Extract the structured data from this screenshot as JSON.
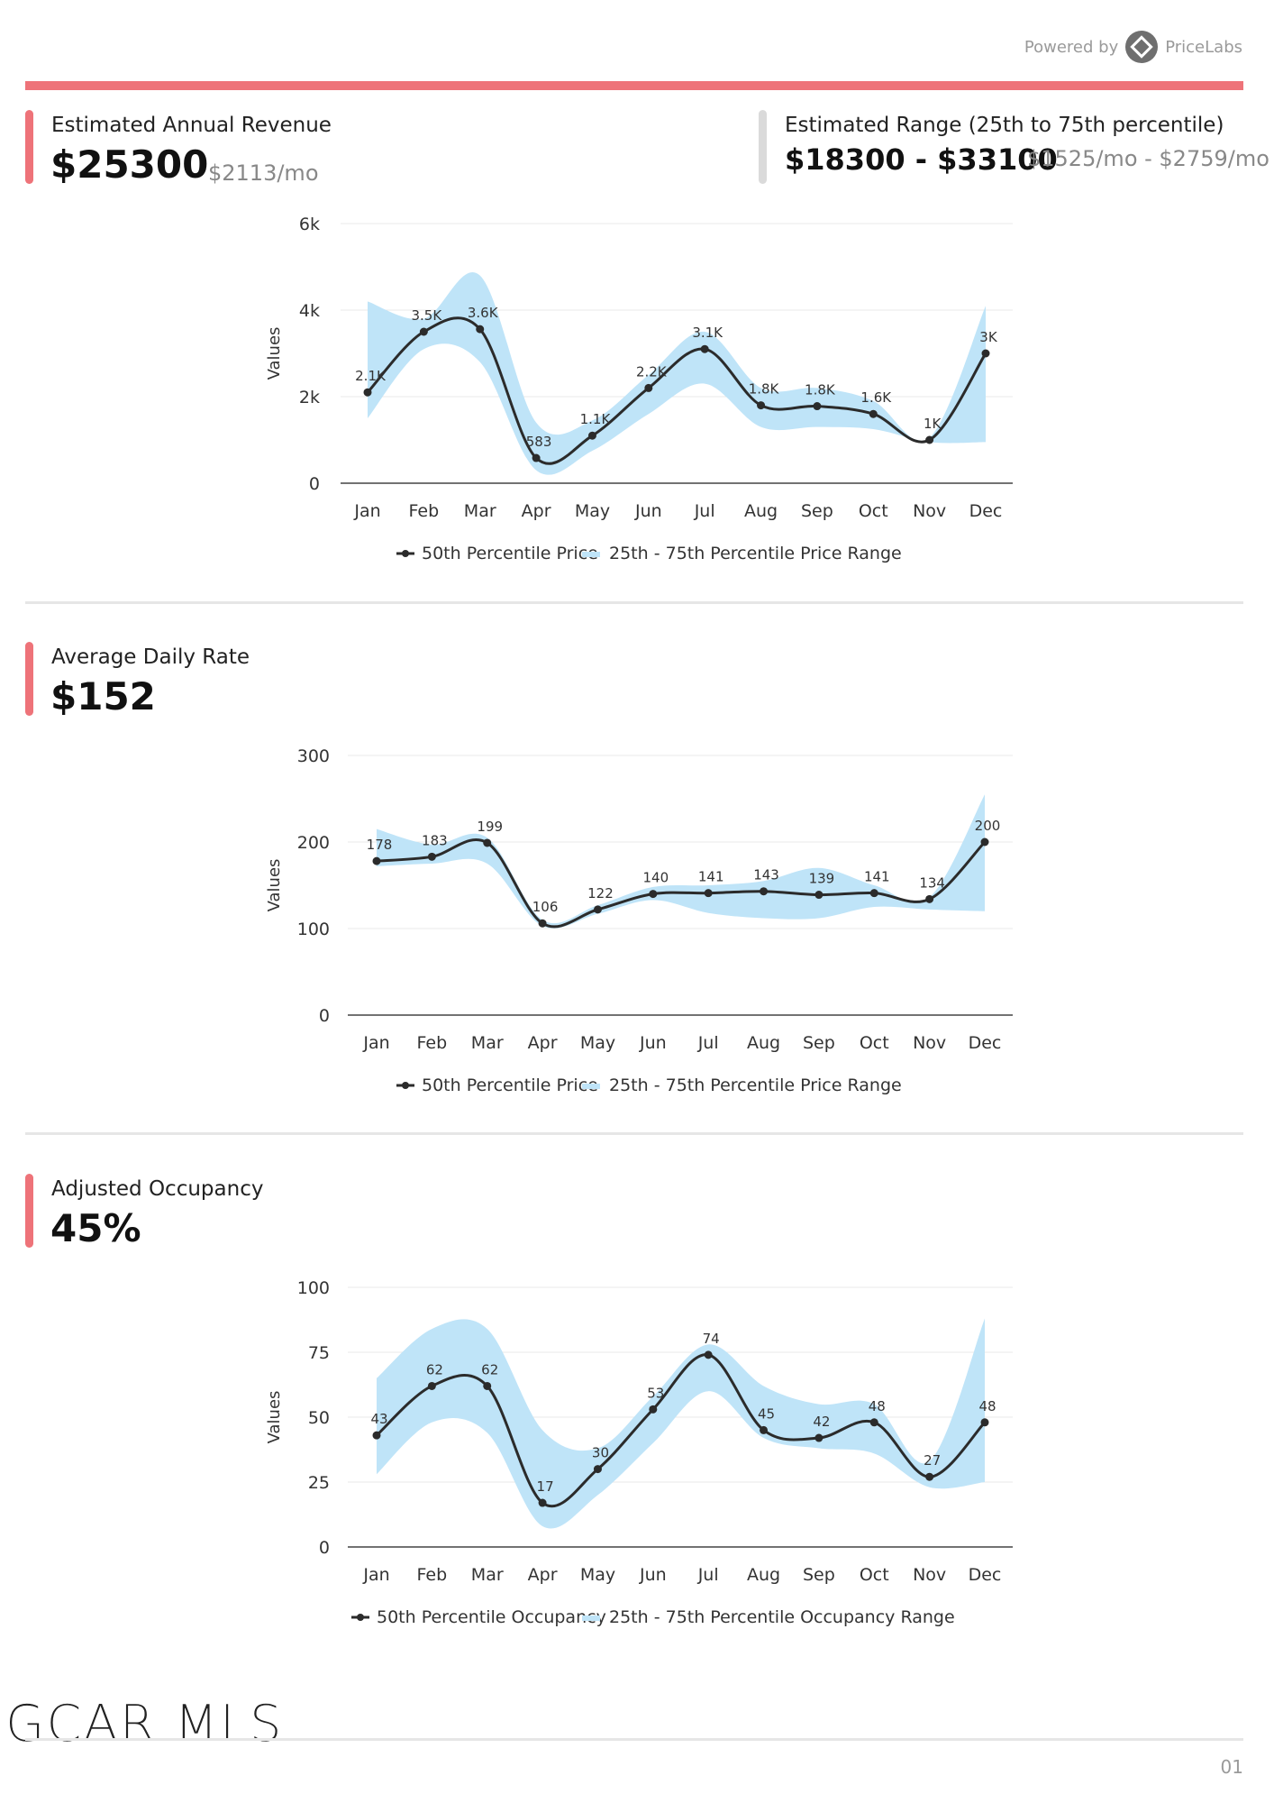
{
  "header": {
    "powered_by": "Powered by",
    "brand": "PriceLabs"
  },
  "revenue": {
    "label": "Estimated Annual Revenue",
    "value": "$25300",
    "monthly": "$2113/mo",
    "range_label": "Estimated Range (25th to 75th percentile)",
    "range_value": "$18300 - $33100",
    "range_monthly": "$1525/mo - $2759/mo"
  },
  "adr": {
    "label": "Average Daily Rate",
    "value": "$152"
  },
  "occupancy": {
    "label": "Adjusted Occupancy",
    "value": "45%"
  },
  "footer": {
    "logo": "GCAR MLS",
    "page": "01"
  },
  "colors": {
    "accent": "#ee7379",
    "band": "#bfe4f8",
    "line": "#2b2b2b"
  },
  "chart_data": [
    {
      "type": "line",
      "categories": [
        "Jan",
        "Feb",
        "Mar",
        "Apr",
        "May",
        "Jun",
        "Jul",
        "Aug",
        "Sep",
        "Oct",
        "Nov",
        "Dec"
      ],
      "ylabel": "Values",
      "ylim": [
        0,
        6000
      ],
      "yticks": [
        0,
        2000,
        4000,
        6000
      ],
      "ytick_labels": [
        "0",
        "2k",
        "4k",
        "6k"
      ],
      "series": [
        {
          "name": "50th Percentile Price",
          "values": [
            2100,
            3500,
            3560,
            583,
            1100,
            2200,
            3100,
            1800,
            1780,
            1600,
            1000,
            3000
          ],
          "labels": [
            "2.1K",
            "3.5K",
            "3.6K",
            "583",
            "1.1K",
            "2.2K",
            "3.1K",
            "1.8K",
            "1.8K",
            "1.6K",
            "1K",
            "3K"
          ]
        },
        {
          "name": "25th - 75th Percentile Price Range",
          "kind": "band",
          "lower": [
            1500,
            3100,
            2800,
            300,
            750,
            1600,
            2300,
            1300,
            1300,
            1250,
            950,
            950
          ],
          "upper": [
            4200,
            3800,
            4800,
            1400,
            1450,
            2500,
            3500,
            2200,
            2200,
            1900,
            1050,
            4100
          ]
        }
      ],
      "legend": [
        "50th Percentile Price",
        "25th - 75th Percentile Price Range"
      ],
      "legend_position": "bottom",
      "grid": true
    },
    {
      "type": "line",
      "categories": [
        "Jan",
        "Feb",
        "Mar",
        "Apr",
        "May",
        "Jun",
        "Jul",
        "Aug",
        "Sep",
        "Oct",
        "Nov",
        "Dec"
      ],
      "ylabel": "Values",
      "ylim": [
        0,
        300
      ],
      "yticks": [
        0,
        100,
        200,
        300
      ],
      "ytick_labels": [
        "0",
        "100",
        "200",
        "300"
      ],
      "series": [
        {
          "name": "50th Percentile Price",
          "values": [
            178,
            183,
            199,
            106,
            122,
            140,
            141,
            143,
            139,
            141,
            134,
            200
          ],
          "labels": [
            "178",
            "183",
            "199",
            "106",
            "122",
            "140",
            "141",
            "143",
            "139",
            "141",
            "134",
            "200"
          ]
        },
        {
          "name": "25th - 75th Percentile Price Range",
          "kind": "band",
          "lower": [
            172,
            175,
            175,
            103,
            117,
            133,
            118,
            112,
            112,
            125,
            122,
            120
          ],
          "upper": [
            215,
            197,
            205,
            110,
            127,
            148,
            150,
            155,
            170,
            150,
            136,
            255
          ]
        }
      ],
      "legend": [
        "50th Percentile Price",
        "25th - 75th Percentile Price Range"
      ],
      "legend_position": "bottom",
      "grid": true
    },
    {
      "type": "line",
      "categories": [
        "Jan",
        "Feb",
        "Mar",
        "Apr",
        "May",
        "Jun",
        "Jul",
        "Aug",
        "Sep",
        "Oct",
        "Nov",
        "Dec"
      ],
      "ylabel": "Values",
      "ylim": [
        0,
        100
      ],
      "yticks": [
        0,
        25,
        50,
        75,
        100
      ],
      "ytick_labels": [
        "0",
        "25",
        "50",
        "75",
        "100"
      ],
      "series": [
        {
          "name": "50th Percentile Occupancy",
          "values": [
            43,
            62,
            62,
            17,
            30,
            53,
            74,
            45,
            42,
            48,
            27,
            48
          ],
          "labels": [
            "43",
            "62",
            "62",
            "17",
            "30",
            "53",
            "74",
            "45",
            "42",
            "48",
            "27",
            "48"
          ]
        },
        {
          "name": "25th - 75th Percentile Occupancy Range",
          "kind": "band",
          "lower": [
            28,
            48,
            44,
            8,
            20,
            40,
            60,
            42,
            38,
            36,
            23,
            25
          ],
          "upper": [
            65,
            84,
            84,
            45,
            38,
            58,
            78,
            62,
            55,
            55,
            33,
            88
          ]
        }
      ],
      "legend": [
        "50th Percentile Occupancy",
        "25th - 75th Percentile Occupancy Range"
      ],
      "legend_position": "bottom",
      "grid": true
    }
  ]
}
